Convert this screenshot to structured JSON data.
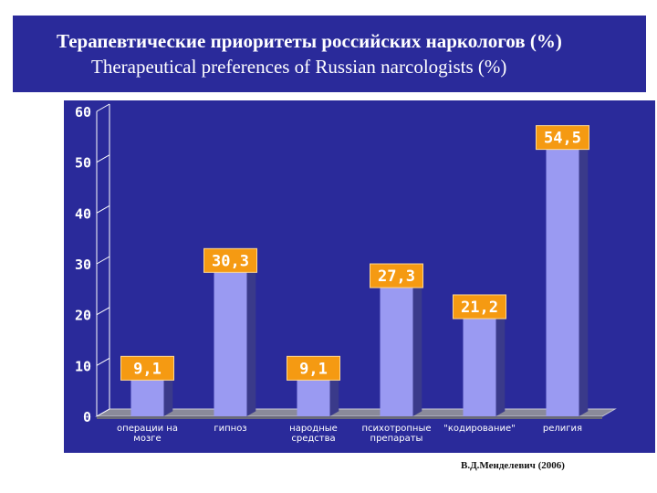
{
  "header": {
    "title_ru": "Терапевтические приоритеты российских наркологов (%)",
    "title_en": "Therapeutical preferences of Russian narcologists (%)"
  },
  "footer": {
    "credit": "В.Д.Менделевич (2006)"
  },
  "colors": {
    "background_panel": "#2a2a9a",
    "bar_face": "#9a9af2",
    "bar_side": "#3a3a8a",
    "label_box": "#f59a12",
    "text": "#ffffff"
  },
  "chart_data": {
    "type": "bar",
    "categories": [
      [
        "операции на",
        "мозге"
      ],
      [
        "гипноз"
      ],
      [
        "народные",
        "средства"
      ],
      [
        "психотропные",
        "препараты"
      ],
      [
        "\"кодирование\""
      ],
      [
        "религия"
      ]
    ],
    "values": [
      9.1,
      30.3,
      9.1,
      27.3,
      21.2,
      54.5
    ],
    "data_labels": [
      "9,1",
      "30,3",
      "9,1",
      "27,3",
      "21,2",
      "54,5"
    ],
    "yticks": [
      0,
      10,
      20,
      30,
      40,
      50,
      60
    ],
    "ylim": [
      0,
      60
    ],
    "grid": false
  }
}
